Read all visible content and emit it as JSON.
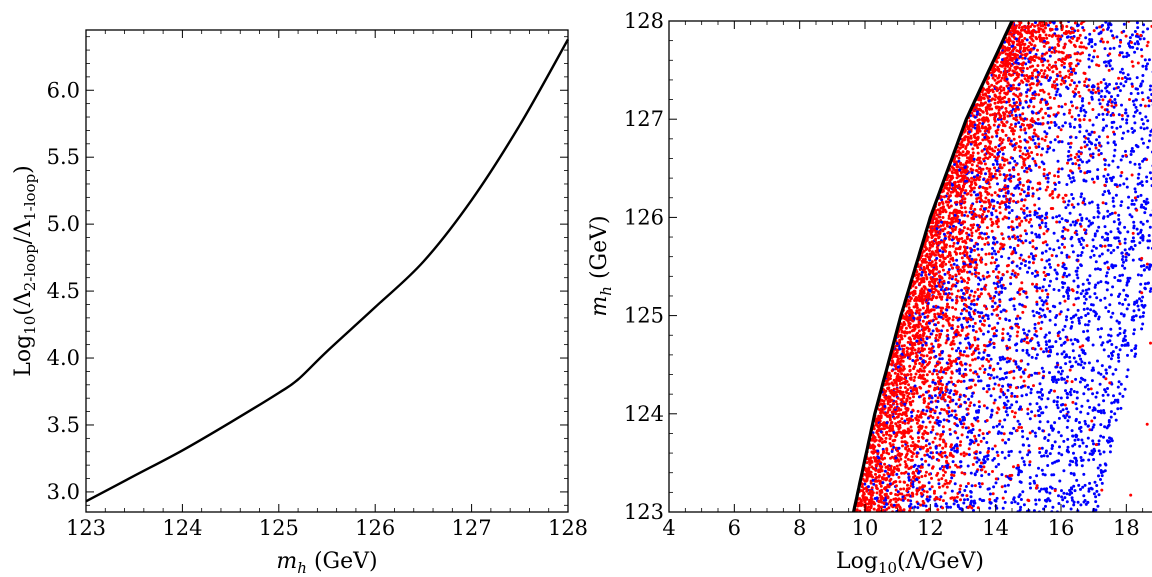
{
  "chart_data": [
    {
      "type": "line",
      "title": "",
      "xlabel": "m_h (GeV)",
      "xlabel_parts": {
        "symbol": "m",
        "sub": "h",
        "rest": " (GeV)"
      },
      "ylabel": "Log10(Λ2-loop/Λ1-loop)",
      "ylabel_parts": {
        "a": "Log",
        "a_sub": "10",
        "b": "(Λ",
        "b_sub": "2-loop",
        "c": "/Λ",
        "c_sub": "1-loop",
        "d": ")"
      },
      "xlim": [
        123,
        128
      ],
      "ylim": [
        2.85,
        6.45
      ],
      "xticks": [
        123,
        124,
        125,
        126,
        127,
        128
      ],
      "xtick_labels": [
        "123",
        "124",
        "125",
        "126",
        "127",
        "128"
      ],
      "yticks": [
        3.0,
        3.5,
        4.0,
        4.5,
        5.0,
        5.5,
        6.0
      ],
      "ytick_labels": [
        "3.0",
        "3.5",
        "4.0",
        "4.5",
        "5.0",
        "5.5",
        "6.0"
      ],
      "series": [
        {
          "color": "#000000",
          "x": [
            123.0,
            123.5,
            124.0,
            124.5,
            125.0,
            125.2,
            125.5,
            126.0,
            126.5,
            127.0,
            127.5,
            128.0
          ],
          "y": [
            2.93,
            3.12,
            3.31,
            3.52,
            3.74,
            3.84,
            4.05,
            4.38,
            4.72,
            5.18,
            5.74,
            6.38
          ]
        }
      ]
    },
    {
      "type": "scatter",
      "title": "",
      "xlabel": "Log10(Λ/GeV)",
      "xlabel_parts": {
        "a": "Log",
        "a_sub": "10",
        "b": "(Λ/GeV)"
      },
      "ylabel": "m_h (GeV)",
      "ylabel_parts": {
        "symbol": "m",
        "sub": "h",
        "rest": " (GeV)"
      },
      "xlim": [
        4,
        19
      ],
      "ylim": [
        123,
        128
      ],
      "xticks": [
        4,
        6,
        8,
        10,
        12,
        14,
        16,
        18
      ],
      "xtick_labels": [
        "4",
        "6",
        "8",
        "10",
        "12",
        "14",
        "16",
        "18"
      ],
      "yticks": [
        123,
        124,
        125,
        126,
        127,
        128
      ],
      "ytick_labels": [
        "123",
        "124",
        "125",
        "126",
        "127",
        "128"
      ],
      "boundary": {
        "color": "#000000",
        "m_h": [
          123.0,
          124.0,
          125.0,
          126.0,
          127.0,
          128.0
        ],
        "log10_lambda": [
          9.65,
          10.3,
          11.1,
          12.0,
          13.1,
          14.5
        ]
      },
      "series": [
        {
          "color": "#ff0000",
          "density_note": "dense near stability boundary",
          "count": 4200
        },
        {
          "color": "#0000ff",
          "density_note": "spread uniformly to right of boundary",
          "count": 3000
        }
      ]
    }
  ]
}
